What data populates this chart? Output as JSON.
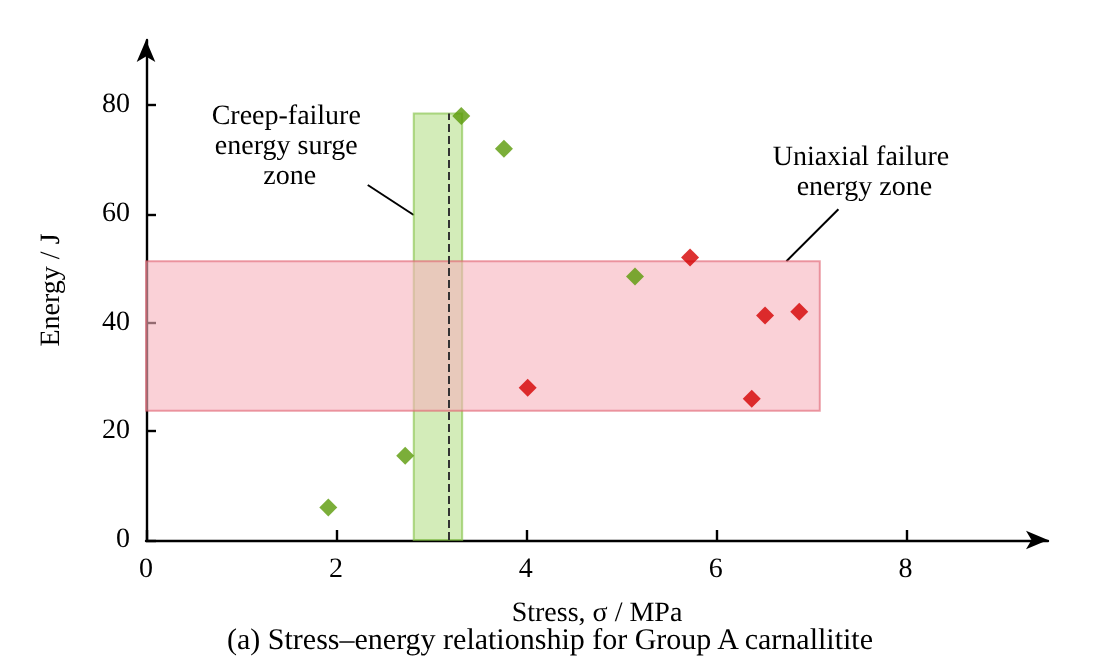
{
  "chart_data": {
    "type": "scatter",
    "title": "(a) Stress–energy relationship for Group A carnallitite",
    "xlabel": "Stress, σ / MPa",
    "ylabel": "Energy / J",
    "xlim": [
      0,
      9.5
    ],
    "xticks": [
      0,
      2,
      4,
      6,
      8
    ],
    "ylim": [
      0,
      92
    ],
    "yticks": [
      0,
      20,
      40,
      60,
      80
    ],
    "grid": false,
    "marker": "diamond",
    "series": [
      {
        "color": "#5a9a08",
        "x": [
          1.92,
          2.73,
          3.32,
          3.77,
          5.15
        ],
        "values": [
          6,
          15.5,
          78,
          72,
          48.5
        ]
      },
      {
        "color": "#d40000",
        "x": [
          4.02,
          5.73,
          6.52,
          6.88,
          6.38
        ],
        "values": [
          28,
          52,
          41.3,
          42,
          26
        ]
      }
    ],
    "bands": [
      {
        "axis": "x",
        "from": 2.82,
        "to": 3.33,
        "label": "Creep-failure energy surge zone",
        "color": "#b5e08a"
      },
      {
        "axis": "y",
        "from": 23.8,
        "to": 51.3,
        "label": "Uniaxial failure energy zone",
        "color": "#f7b3bd"
      }
    ],
    "ref_lines": [
      {
        "axis": "x",
        "value": 3.18,
        "line_style": "dashed",
        "color": "#333333"
      }
    ]
  }
}
